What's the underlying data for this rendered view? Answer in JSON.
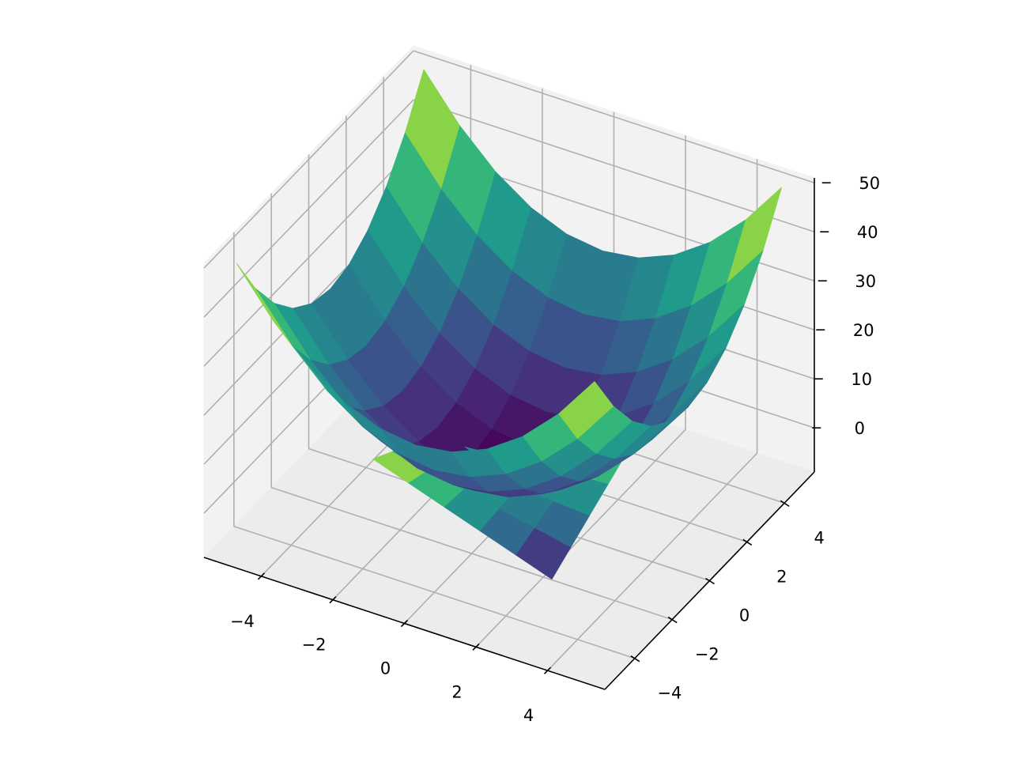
{
  "chart_data": {
    "type": "surface3d",
    "colormap": "viridis",
    "xlim": [
      -5.6,
      5.6
    ],
    "ylim": [
      -5.6,
      5.6
    ],
    "zlim": [
      -9,
      51
    ],
    "xticks": [
      {
        "value": -4,
        "label": "−4"
      },
      {
        "value": -2,
        "label": "−2"
      },
      0,
      2,
      4
    ],
    "yticks": [
      {
        "value": -4,
        "label": "−4"
      },
      {
        "value": -2,
        "label": "−2"
      },
      0,
      2,
      4
    ],
    "zticks": [
      0,
      10,
      20,
      30,
      40,
      50
    ],
    "grid": true,
    "surfaces": [
      {
        "x": [
          -5,
          -4,
          -3,
          -2,
          -1,
          0,
          1,
          2,
          3,
          4,
          5
        ],
        "y": [
          -5,
          -4,
          -3,
          -2,
          -1,
          0,
          1,
          2,
          3,
          4,
          5
        ],
        "z": [
          [
            50,
            41,
            34,
            29,
            26,
            25,
            26,
            29,
            34,
            41,
            50
          ],
          [
            41,
            32,
            25,
            20,
            17,
            16,
            17,
            20,
            25,
            32,
            41
          ],
          [
            34,
            25,
            18,
            13,
            10,
            9,
            10,
            13,
            18,
            25,
            34
          ],
          [
            29,
            20,
            13,
            8,
            5,
            4,
            5,
            8,
            13,
            20,
            29
          ],
          [
            26,
            17,
            10,
            5,
            2,
            1,
            2,
            5,
            10,
            17,
            26
          ],
          [
            25,
            16,
            9,
            4,
            1,
            0,
            1,
            4,
            9,
            16,
            25
          ],
          [
            26,
            17,
            10,
            5,
            2,
            1,
            2,
            5,
            10,
            17,
            26
          ],
          [
            29,
            20,
            13,
            8,
            5,
            4,
            5,
            8,
            13,
            20,
            29
          ],
          [
            34,
            25,
            18,
            13,
            10,
            9,
            10,
            13,
            18,
            25,
            34
          ],
          [
            41,
            32,
            25,
            20,
            17,
            16,
            17,
            20,
            25,
            32,
            41
          ],
          [
            50,
            41,
            34,
            29,
            26,
            25,
            26,
            29,
            34,
            41,
            50
          ]
        ]
      },
      {
        "x": [
          -2.5,
          -1.5,
          -0.5,
          0.5,
          1.5,
          2.5
        ],
        "y": [
          -2.5,
          -1.5,
          -0.5,
          0.5,
          1.5,
          2.5
        ],
        "z": [
          [
            6.25,
            3.75,
            1.25,
            -1.25,
            -3.75,
            -6.25
          ],
          [
            3.75,
            2.25,
            0.75,
            -0.75,
            -2.25,
            -3.75
          ],
          [
            1.25,
            0.75,
            0.25,
            -0.25,
            -0.75,
            -1.25
          ],
          [
            -1.25,
            -0.75,
            -0.25,
            0.25,
            0.75,
            1.25
          ],
          [
            -3.75,
            -2.25,
            -0.75,
            0.75,
            2.25,
            3.75
          ],
          [
            -6.25,
            -3.75,
            -1.25,
            1.25,
            3.75,
            6.25
          ]
        ]
      }
    ]
  }
}
